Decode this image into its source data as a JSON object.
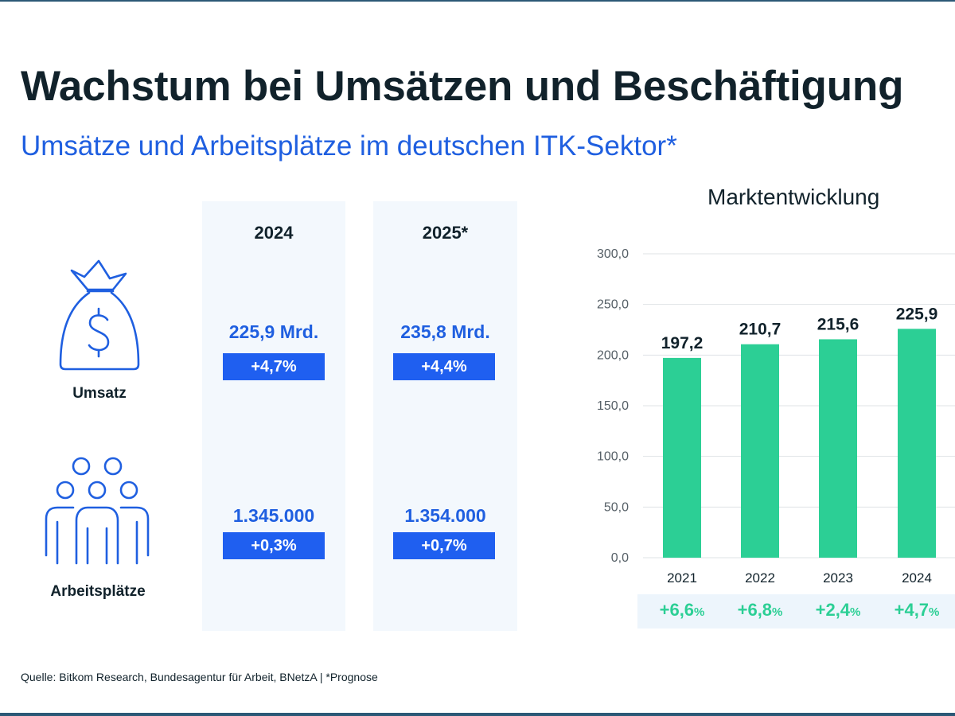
{
  "header": {
    "title": "Wachstum bei Umsätzen und Beschäftigung",
    "subtitle": "Umsätze und Arbeitsplätze im deutschen ITK-Sektor*"
  },
  "table": {
    "columns": [
      "2024",
      "2025*"
    ],
    "rows": [
      {
        "label": "Umsatz",
        "icon": "money-bag-icon",
        "values": [
          "225,9 Mrd.",
          "235,8 Mrd."
        ],
        "changes": [
          "+4,7%",
          "+4,4%"
        ]
      },
      {
        "label": "Arbeitsplätze",
        "icon": "people-group-icon",
        "values": [
          "1.345.000",
          "1.354.000"
        ],
        "changes": [
          "+0,3%",
          "+0,7%"
        ]
      }
    ]
  },
  "market": {
    "title": "Marktentwicklung",
    "growth": [
      {
        "num": "+6,6",
        "unit": "%"
      },
      {
        "num": "+6,8",
        "unit": "%"
      },
      {
        "num": "+2,4",
        "unit": "%"
      },
      {
        "num": "+4,7",
        "unit": "%"
      }
    ]
  },
  "chart_data": {
    "type": "bar",
    "title": "Marktentwicklung",
    "categories": [
      "2021",
      "2022",
      "2023",
      "2024"
    ],
    "values": [
      197.2,
      210.7,
      215.6,
      225.9
    ],
    "value_labels": [
      "197,2",
      "210,7",
      "215,6",
      "225,9"
    ],
    "yticks": [
      "0,0",
      "50,0",
      "100,0",
      "150,0",
      "200,0",
      "250,0",
      "300,0"
    ],
    "ylim": [
      0,
      300
    ],
    "grid": true,
    "bar_color": "#2ccf95"
  },
  "colors": {
    "accent_blue": "#1f5fe0",
    "green": "#2ccf95",
    "dark": "#11222b"
  },
  "footer": {
    "source": "Quelle: Bitkom Research, Bundesagentur für Arbeit, BNetzA | *Prognose"
  }
}
